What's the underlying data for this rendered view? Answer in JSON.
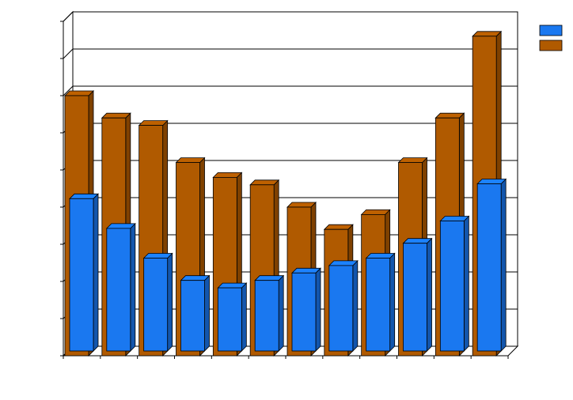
{
  "chart_data": {
    "type": "bar3d",
    "categories": [
      null,
      null,
      null,
      null,
      null,
      null,
      null,
      null,
      null,
      null,
      null,
      null
    ],
    "series": [
      {
        "color": "#1a78f0",
        "values": [
          4.1,
          3.3,
          2.5,
          1.9,
          1.7,
          1.9,
          2.1,
          2.3,
          2.5,
          2.9,
          3.5,
          4.5
        ]
      },
      {
        "color": "#b05a00",
        "values": [
          7.0,
          6.4,
          6.2,
          5.2,
          4.8,
          4.6,
          4.0,
          3.4,
          3.8,
          5.2,
          6.4,
          8.6
        ]
      }
    ],
    "ylim": [
      0,
      9
    ],
    "yticks": [
      0,
      1,
      2,
      3,
      4,
      5,
      6,
      7,
      8,
      9
    ],
    "grid": true,
    "legend": "right"
  }
}
